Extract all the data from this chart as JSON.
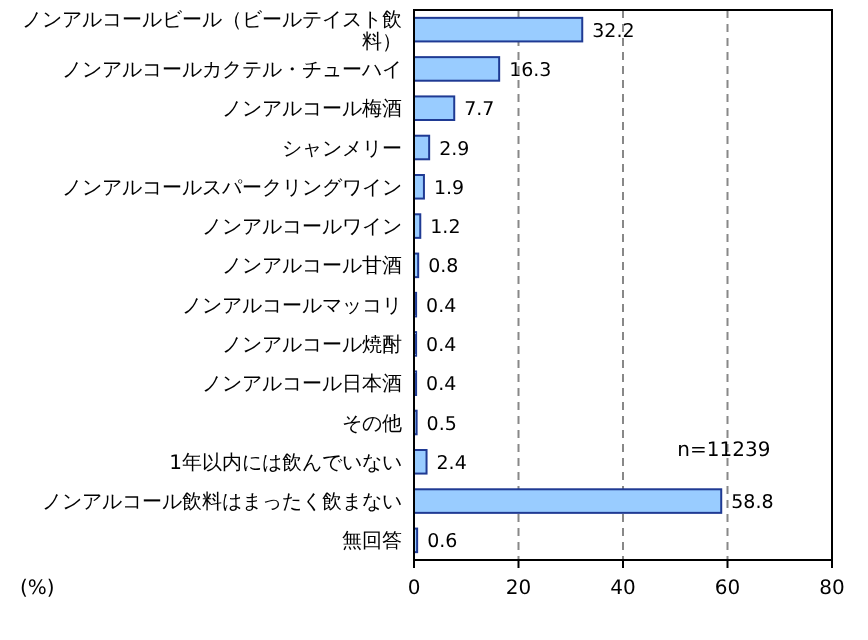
{
  "chart_data": {
    "type": "bar",
    "orientation": "horizontal",
    "xlabel": "(%)",
    "categories": [
      "ノンアルコールビール（ビールテイスト飲料）",
      "ノンアルコールカクテル・チューハイ",
      "ノンアルコール梅酒",
      "シャンメリー",
      "ノンアルコールスパークリングワイン",
      "ノンアルコールワイン",
      "ノンアルコール甘酒",
      "ノンアルコールマッコリ",
      "ノンアルコール焼酎",
      "ノンアルコール日本酒",
      "その他",
      "1年以内には飲んでいない",
      "ノンアルコール飲料はまったく飲まない",
      "無回答"
    ],
    "values": [
      32.2,
      16.3,
      7.7,
      2.9,
      1.9,
      1.2,
      0.8,
      0.4,
      0.4,
      0.4,
      0.5,
      2.4,
      58.8,
      0.6
    ],
    "color": "#99ccff",
    "xlim": [
      0,
      80
    ],
    "xticks": [
      0,
      20,
      40,
      60,
      80
    ],
    "grid": "x",
    "data_labels": true,
    "annotations": [
      "n=11239"
    ]
  }
}
